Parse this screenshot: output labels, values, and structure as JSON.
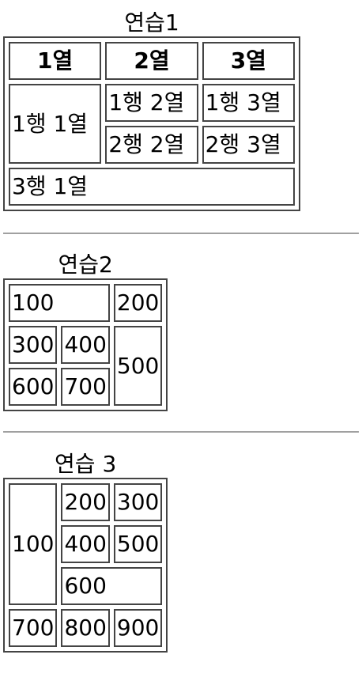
{
  "table1": {
    "caption": "연습1",
    "headers": [
      "1열",
      "2열",
      "3열"
    ],
    "r1c1": "1행 1열",
    "r1c2": "1행 2열",
    "r1c3": "1행 3열",
    "r2c2": "2행 2열",
    "r2c3": "2행 3열",
    "r3c1": "3행 1열"
  },
  "table2": {
    "caption": "연습2",
    "cells": [
      "100",
      "200",
      "300",
      "400",
      "500",
      "600",
      "700"
    ]
  },
  "table3": {
    "caption": "연습 3",
    "cells": [
      "100",
      "200",
      "300",
      "400",
      "500",
      "600",
      "700",
      "800",
      "900"
    ]
  }
}
